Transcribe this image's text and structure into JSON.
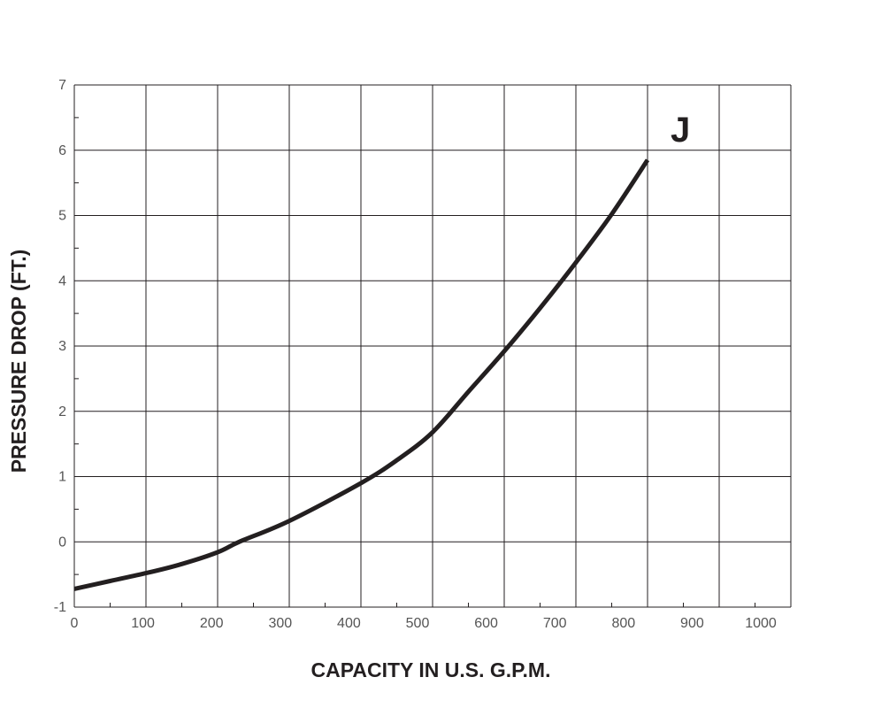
{
  "chart_data": {
    "type": "line",
    "xlabel": "CAPACITY IN U.S. G.P.M.",
    "ylabel": "PRESSURE DROP (FT.)",
    "xlim": [
      0,
      1000
    ],
    "ylim": [
      -1,
      7
    ],
    "x_ticks": [
      "0",
      "100",
      "200",
      "300",
      "400",
      "500",
      "600",
      "700",
      "800",
      "900",
      "1000"
    ],
    "y_ticks": [
      "-1",
      "0",
      "1",
      "2",
      "3",
      "4",
      "5",
      "6",
      "7"
    ],
    "grid": true,
    "series": [
      {
        "name": "J",
        "color": "#231f20",
        "x": [
          0,
          50,
          100,
          150,
          200,
          230,
          300,
          400,
          450,
          500,
          550,
          600,
          650,
          700,
          750,
          800
        ],
        "y": [
          -0.72,
          -0.6,
          -0.48,
          -0.34,
          -0.16,
          0.0,
          0.32,
          0.9,
          1.25,
          1.68,
          2.3,
          2.92,
          3.58,
          4.28,
          5.02,
          5.85
        ]
      }
    ]
  }
}
